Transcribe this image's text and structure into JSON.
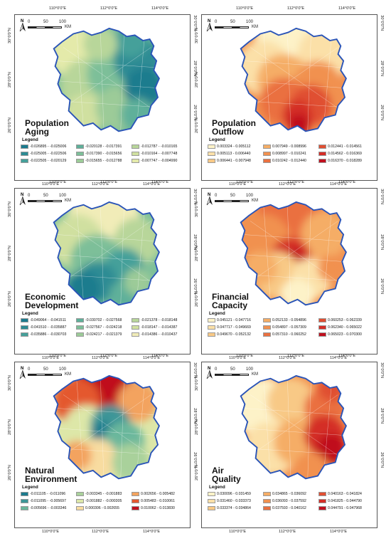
{
  "scale_bar": {
    "ticks": [
      "0",
      "50",
      "100"
    ],
    "unit": "KM"
  },
  "compass_label": "N",
  "lon_ticks_top": [
    "110°0'0\"E",
    "112°0'0\"E",
    "114°0'0\"E"
  ],
  "lon_ticks_bottom": [
    "110°0'0\"E",
    "112°0'0\"E",
    "114°0'0\"E"
  ],
  "lat_ticks": [
    "30°0'0\"N",
    "28°0'0\"N",
    "26°0'0\"N"
  ],
  "legend_title": "Legend",
  "panels": [
    {
      "title_lines": [
        "Population",
        "Aging"
      ],
      "legend_columns": 3,
      "legend": [
        {
          "label": "-0.026895 - -0.025006",
          "color": "#1c7b8e"
        },
        {
          "label": "-0.025005 - -0.022506",
          "color": "#2e8c94"
        },
        {
          "label": "-0.022505 - -0.020129",
          "color": "#45a09a"
        },
        {
          "label": "-0.020128 - -0.017391",
          "color": "#5fb09a"
        },
        {
          "label": "-0.017390 - -0.015656",
          "color": "#7dbf99"
        },
        {
          "label": "-0.015655 - -0.012788",
          "color": "#9ccb98"
        },
        {
          "label": "-0.012787 - -0.010165",
          "color": "#b8d69a"
        },
        {
          "label": "-0.010164 - -0.007748",
          "color": "#d0e0a0"
        },
        {
          "label": "-0.007747 - -0.004990",
          "color": "#e4eaaa"
        }
      ]
    },
    {
      "title_lines": [
        "Population",
        "Outflow"
      ],
      "legend_columns": 3,
      "legend": [
        {
          "label": "0.003324 - 0.005112",
          "color": "#fdf2c8"
        },
        {
          "label": "0.005113 - 0.006440",
          "color": "#fbe0a8"
        },
        {
          "label": "0.006441 - 0.007948",
          "color": "#f8c986"
        },
        {
          "label": "0.007949 - 0.008996",
          "color": "#f5ad66"
        },
        {
          "label": "0.008997 - 0.010241",
          "color": "#f19150"
        },
        {
          "label": "0.010242 - 0.012440",
          "color": "#ea7040"
        },
        {
          "label": "0.012441 - 0.014561",
          "color": "#e04f32"
        },
        {
          "label": "0.014562 - 0.016369",
          "color": "#d42d26"
        },
        {
          "label": "0.016370 - 0.018289",
          "color": "#c0101e"
        }
      ]
    },
    {
      "title_lines": [
        "Economic",
        "Development"
      ],
      "legend_columns": 3,
      "legend": [
        {
          "label": "-0.049064 - -0.041511",
          "color": "#1c7b8e"
        },
        {
          "label": "-0.041510 - -0.035887",
          "color": "#2e8c94"
        },
        {
          "label": "-0.035886 - -0.030703",
          "color": "#45a09a"
        },
        {
          "label": "-0.030702 - -0.027568",
          "color": "#5fb09a"
        },
        {
          "label": "-0.027567 - -0.024218",
          "color": "#7dbf99"
        },
        {
          "label": "-0.024217 - -0.021379",
          "color": "#9ccb98"
        },
        {
          "label": "-0.021378 - -0.018148",
          "color": "#b8d69a"
        },
        {
          "label": "-0.018147 - -0.014387",
          "color": "#d0e0a0"
        },
        {
          "label": "-0.014386 - -0.010437",
          "color": "#f1ecb8"
        }
      ]
    },
    {
      "title_lines": [
        "Financial",
        "Capacity"
      ],
      "legend_columns": 3,
      "legend": [
        {
          "label": "0.045121 - 0.047716",
          "color": "#fdf2c8"
        },
        {
          "label": "0.047717 - 0.049669",
          "color": "#fbe0a8"
        },
        {
          "label": "0.049670 - 0.052132",
          "color": "#f8c986"
        },
        {
          "label": "0.052133 - 0.054896",
          "color": "#f5ad66"
        },
        {
          "label": "0.054897 - 0.057309",
          "color": "#f19150"
        },
        {
          "label": "0.057310 - 0.060252",
          "color": "#ea7040"
        },
        {
          "label": "0.060253 - 0.062339",
          "color": "#e04f32"
        },
        {
          "label": "0.062340 - 0.065022",
          "color": "#d42d26"
        },
        {
          "label": "0.065023 - 0.070300",
          "color": "#c0101e"
        }
      ]
    },
    {
      "title_lines": [
        "Natural",
        "Environment"
      ],
      "legend_columns": 3,
      "legend": [
        {
          "label": "-0.011105 - -0.011096",
          "color": "#1c7b8e"
        },
        {
          "label": "-0.011095 - -0.005697",
          "color": "#3d9698"
        },
        {
          "label": "-0.005696 - -0.003346",
          "color": "#6bb79c"
        },
        {
          "label": "-0.003345 - -0.001883",
          "color": "#a9d19b"
        },
        {
          "label": "-0.001882 - -0.000305",
          "color": "#dde7a8"
        },
        {
          "label": "0.000306 - 0.002655",
          "color": "#f8dca0"
        },
        {
          "label": "0.002656 - 0.005482",
          "color": "#f3a35e"
        },
        {
          "label": "0.005483 - 0.010061",
          "color": "#e4582f"
        },
        {
          "label": "0.010062 - 0.013830",
          "color": "#c0101e"
        }
      ]
    },
    {
      "title_lines": [
        "Air",
        "Quality"
      ],
      "legend_columns": 3,
      "legend": [
        {
          "label": "0.030096 - 0.031459",
          "color": "#fdf2c8"
        },
        {
          "label": "0.031460 - 0.033373",
          "color": "#fbe0a8"
        },
        {
          "label": "0.033374 - 0.034864",
          "color": "#f8c986"
        },
        {
          "label": "0.034865 - 0.036092",
          "color": "#f5ad66"
        },
        {
          "label": "0.036093 - 0.037592",
          "color": "#f19150"
        },
        {
          "label": "0.037593 - 0.040162",
          "color": "#ea7040"
        },
        {
          "label": "0.040163 - 0.041824",
          "color": "#e04f32"
        },
        {
          "label": "0.041825 - 0.044790",
          "color": "#d42d26"
        },
        {
          "label": "0.044791 - 0.047968",
          "color": "#c0101e"
        }
      ]
    }
  ]
}
